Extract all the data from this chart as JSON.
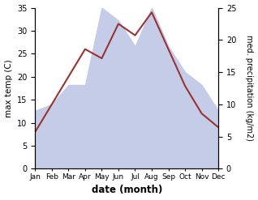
{
  "months": [
    1,
    2,
    3,
    4,
    5,
    6,
    7,
    8,
    9,
    10,
    11,
    12
  ],
  "month_labels": [
    "Jan",
    "Feb",
    "Mar",
    "Apr",
    "May",
    "Jun",
    "Jul",
    "Aug",
    "Sep",
    "Oct",
    "Nov",
    "Dec"
  ],
  "max_temp": [
    8.0,
    14.0,
    20.0,
    26.0,
    24.0,
    31.5,
    29.0,
    34.0,
    26.0,
    18.0,
    12.0,
    9.0
  ],
  "precipitation": [
    9.0,
    10.0,
    13.0,
    13.0,
    25.0,
    23.0,
    19.0,
    25.0,
    19.0,
    15.0,
    13.0,
    9.0
  ],
  "temp_ylim": [
    0,
    35
  ],
  "precip_ylim": [
    0,
    25
  ],
  "temp_color": "#993333",
  "precip_fill_color": "#c5cce8",
  "precip_fill_alpha": 1.0,
  "left_ylabel": "max temp (C)",
  "right_ylabel": "med. precipitation (kg/m2)",
  "xlabel": "date (month)",
  "fig_width": 3.18,
  "fig_height": 2.47,
  "dpi": 100
}
